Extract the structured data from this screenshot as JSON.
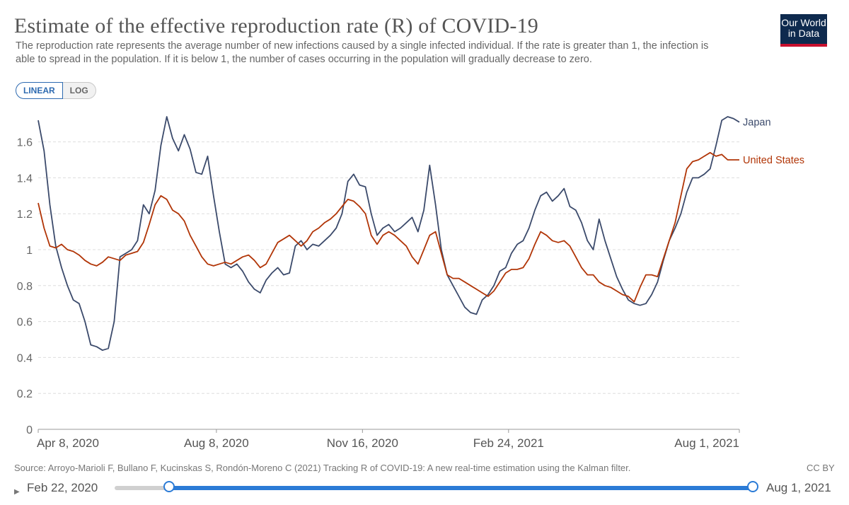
{
  "header": {
    "title": "Estimate of the effective reproduction rate (R) of COVID-19",
    "subtitle": "The reproduction rate represents the average number of new infections caused by a single infected individual. If the rate is greater than 1, the infection is able to spread in the population. If it is below 1, the number of cases occurring in the population will gradually decrease to zero.",
    "logo_line1": "Our World",
    "logo_line2": "in Data"
  },
  "controls": {
    "linear_label": "LINEAR",
    "log_label": "LOG",
    "active": "linear"
  },
  "footer": {
    "source": "Source: Arroyo-Marioli F, Bullano F, Kucinskas S, Rondón-Moreno C (2021) Tracking R of COVID-19: A new real-time estimation using the Kalman filter.",
    "license": "CC BY"
  },
  "timeline": {
    "start_label": "Feb 22, 2020",
    "end_label": "Aug 1, 2021"
  },
  "colors": {
    "japan": "#3b4a6b",
    "united_states": "#b13507",
    "grid": "#dddddd",
    "accent": "#2b7bd6"
  },
  "chart_data": {
    "type": "line",
    "title": "Estimate of the effective reproduction rate (R) of COVID-19",
    "xlabel": "",
    "ylabel": "",
    "x_range": [
      "2020-04-08",
      "2021-08-01"
    ],
    "ylim": [
      0,
      1.8
    ],
    "y_ticks": [
      0,
      0.2,
      0.4,
      0.6,
      0.8,
      1,
      1.2,
      1.4,
      1.6
    ],
    "y_tick_labels": [
      "0",
      "0.2",
      "0.4",
      "0.6",
      "0.8",
      "1",
      "1.2",
      "1.4",
      "1.6"
    ],
    "x_ticks": [
      "2020-04-08",
      "2020-08-08",
      "2020-11-16",
      "2021-02-24",
      "2021-08-01"
    ],
    "x_tick_labels": [
      "Apr 8, 2020",
      "Aug 8, 2020",
      "Nov 16, 2020",
      "Feb 24, 2021",
      "Aug 1, 2021"
    ],
    "grid": true,
    "legend": "line-end labels",
    "series": [
      {
        "name": "Japan",
        "color": "#3b4a6b",
        "points": [
          [
            "2020-04-08",
            1.72
          ],
          [
            "2020-04-12",
            1.55
          ],
          [
            "2020-04-16",
            1.25
          ],
          [
            "2020-04-20",
            1.02
          ],
          [
            "2020-04-24",
            0.9
          ],
          [
            "2020-04-28",
            0.8
          ],
          [
            "2020-05-02",
            0.72
          ],
          [
            "2020-05-06",
            0.7
          ],
          [
            "2020-05-10",
            0.6
          ],
          [
            "2020-05-14",
            0.47
          ],
          [
            "2020-05-18",
            0.46
          ],
          [
            "2020-05-22",
            0.44
          ],
          [
            "2020-05-26",
            0.45
          ],
          [
            "2020-05-30",
            0.6
          ],
          [
            "2020-06-03",
            0.96
          ],
          [
            "2020-06-07",
            0.98
          ],
          [
            "2020-06-11",
            1.0
          ],
          [
            "2020-06-15",
            1.05
          ],
          [
            "2020-06-19",
            1.25
          ],
          [
            "2020-06-23",
            1.2
          ],
          [
            "2020-06-27",
            1.33
          ],
          [
            "2020-07-01",
            1.58
          ],
          [
            "2020-07-05",
            1.74
          ],
          [
            "2020-07-09",
            1.62
          ],
          [
            "2020-07-13",
            1.55
          ],
          [
            "2020-07-17",
            1.64
          ],
          [
            "2020-07-21",
            1.56
          ],
          [
            "2020-07-25",
            1.43
          ],
          [
            "2020-07-29",
            1.42
          ],
          [
            "2020-08-02",
            1.52
          ],
          [
            "2020-08-06",
            1.3
          ],
          [
            "2020-08-10",
            1.1
          ],
          [
            "2020-08-14",
            0.92
          ],
          [
            "2020-08-18",
            0.9
          ],
          [
            "2020-08-22",
            0.92
          ],
          [
            "2020-08-26",
            0.88
          ],
          [
            "2020-08-30",
            0.82
          ],
          [
            "2020-09-03",
            0.78
          ],
          [
            "2020-09-07",
            0.76
          ],
          [
            "2020-09-11",
            0.83
          ],
          [
            "2020-09-15",
            0.87
          ],
          [
            "2020-09-19",
            0.9
          ],
          [
            "2020-09-23",
            0.86
          ],
          [
            "2020-09-27",
            0.87
          ],
          [
            "2020-10-01",
            1.02
          ],
          [
            "2020-10-05",
            1.05
          ],
          [
            "2020-10-09",
            1.0
          ],
          [
            "2020-10-13",
            1.03
          ],
          [
            "2020-10-17",
            1.02
          ],
          [
            "2020-10-21",
            1.05
          ],
          [
            "2020-10-25",
            1.08
          ],
          [
            "2020-10-29",
            1.12
          ],
          [
            "2020-11-02",
            1.2
          ],
          [
            "2020-11-06",
            1.38
          ],
          [
            "2020-11-10",
            1.42
          ],
          [
            "2020-11-14",
            1.36
          ],
          [
            "2020-11-18",
            1.35
          ],
          [
            "2020-11-22",
            1.2
          ],
          [
            "2020-11-26",
            1.08
          ],
          [
            "2020-11-30",
            1.12
          ],
          [
            "2020-12-04",
            1.14
          ],
          [
            "2020-12-08",
            1.1
          ],
          [
            "2020-12-12",
            1.12
          ],
          [
            "2020-12-16",
            1.15
          ],
          [
            "2020-12-20",
            1.18
          ],
          [
            "2020-12-24",
            1.1
          ],
          [
            "2020-12-28",
            1.22
          ],
          [
            "2021-01-01",
            1.47
          ],
          [
            "2021-01-05",
            1.25
          ],
          [
            "2021-01-09",
            1.0
          ],
          [
            "2021-01-13",
            0.86
          ],
          [
            "2021-01-17",
            0.8
          ],
          [
            "2021-01-21",
            0.74
          ],
          [
            "2021-01-25",
            0.68
          ],
          [
            "2021-01-29",
            0.65
          ],
          [
            "2021-02-02",
            0.64
          ],
          [
            "2021-02-06",
            0.72
          ],
          [
            "2021-02-10",
            0.75
          ],
          [
            "2021-02-14",
            0.8
          ],
          [
            "2021-02-18",
            0.88
          ],
          [
            "2021-02-22",
            0.9
          ],
          [
            "2021-02-26",
            0.98
          ],
          [
            "2021-03-02",
            1.03
          ],
          [
            "2021-03-06",
            1.05
          ],
          [
            "2021-03-10",
            1.12
          ],
          [
            "2021-03-14",
            1.22
          ],
          [
            "2021-03-18",
            1.3
          ],
          [
            "2021-03-22",
            1.32
          ],
          [
            "2021-03-26",
            1.27
          ],
          [
            "2021-03-30",
            1.3
          ],
          [
            "2021-04-03",
            1.34
          ],
          [
            "2021-04-07",
            1.24
          ],
          [
            "2021-04-11",
            1.22
          ],
          [
            "2021-04-15",
            1.15
          ],
          [
            "2021-04-19",
            1.05
          ],
          [
            "2021-04-23",
            1.0
          ],
          [
            "2021-04-27",
            1.17
          ],
          [
            "2021-05-01",
            1.05
          ],
          [
            "2021-05-05",
            0.95
          ],
          [
            "2021-05-09",
            0.85
          ],
          [
            "2021-05-13",
            0.78
          ],
          [
            "2021-05-17",
            0.72
          ],
          [
            "2021-05-21",
            0.7
          ],
          [
            "2021-05-25",
            0.69
          ],
          [
            "2021-05-29",
            0.7
          ],
          [
            "2021-06-02",
            0.75
          ],
          [
            "2021-06-06",
            0.82
          ],
          [
            "2021-06-10",
            0.94
          ],
          [
            "2021-06-14",
            1.05
          ],
          [
            "2021-06-18",
            1.12
          ],
          [
            "2021-06-22",
            1.2
          ],
          [
            "2021-06-26",
            1.32
          ],
          [
            "2021-06-30",
            1.4
          ],
          [
            "2021-07-04",
            1.4
          ],
          [
            "2021-07-08",
            1.42
          ],
          [
            "2021-07-12",
            1.45
          ],
          [
            "2021-07-16",
            1.58
          ],
          [
            "2021-07-20",
            1.72
          ],
          [
            "2021-07-24",
            1.74
          ],
          [
            "2021-07-28",
            1.73
          ],
          [
            "2021-08-01",
            1.71
          ]
        ]
      },
      {
        "name": "United States",
        "color": "#b13507",
        "points": [
          [
            "2020-04-08",
            1.26
          ],
          [
            "2020-04-12",
            1.12
          ],
          [
            "2020-04-16",
            1.02
          ],
          [
            "2020-04-20",
            1.01
          ],
          [
            "2020-04-24",
            1.03
          ],
          [
            "2020-04-28",
            1.0
          ],
          [
            "2020-05-02",
            0.99
          ],
          [
            "2020-05-06",
            0.97
          ],
          [
            "2020-05-10",
            0.94
          ],
          [
            "2020-05-14",
            0.92
          ],
          [
            "2020-05-18",
            0.91
          ],
          [
            "2020-05-22",
            0.93
          ],
          [
            "2020-05-26",
            0.96
          ],
          [
            "2020-05-30",
            0.95
          ],
          [
            "2020-06-03",
            0.94
          ],
          [
            "2020-06-07",
            0.97
          ],
          [
            "2020-06-11",
            0.98
          ],
          [
            "2020-06-15",
            0.99
          ],
          [
            "2020-06-19",
            1.04
          ],
          [
            "2020-06-23",
            1.14
          ],
          [
            "2020-06-27",
            1.25
          ],
          [
            "2020-07-01",
            1.3
          ],
          [
            "2020-07-05",
            1.28
          ],
          [
            "2020-07-09",
            1.22
          ],
          [
            "2020-07-13",
            1.2
          ],
          [
            "2020-07-17",
            1.16
          ],
          [
            "2020-07-21",
            1.08
          ],
          [
            "2020-07-25",
            1.02
          ],
          [
            "2020-07-29",
            0.96
          ],
          [
            "2020-08-02",
            0.92
          ],
          [
            "2020-08-06",
            0.91
          ],
          [
            "2020-08-10",
            0.92
          ],
          [
            "2020-08-14",
            0.93
          ],
          [
            "2020-08-18",
            0.92
          ],
          [
            "2020-08-22",
            0.94
          ],
          [
            "2020-08-26",
            0.96
          ],
          [
            "2020-08-30",
            0.97
          ],
          [
            "2020-09-03",
            0.94
          ],
          [
            "2020-09-07",
            0.9
          ],
          [
            "2020-09-11",
            0.92
          ],
          [
            "2020-09-15",
            0.98
          ],
          [
            "2020-09-19",
            1.04
          ],
          [
            "2020-09-23",
            1.06
          ],
          [
            "2020-09-27",
            1.08
          ],
          [
            "2020-10-01",
            1.05
          ],
          [
            "2020-10-05",
            1.02
          ],
          [
            "2020-10-09",
            1.05
          ],
          [
            "2020-10-13",
            1.1
          ],
          [
            "2020-10-17",
            1.12
          ],
          [
            "2020-10-21",
            1.15
          ],
          [
            "2020-10-25",
            1.17
          ],
          [
            "2020-10-29",
            1.2
          ],
          [
            "2020-11-02",
            1.24
          ],
          [
            "2020-11-06",
            1.28
          ],
          [
            "2020-11-10",
            1.27
          ],
          [
            "2020-11-14",
            1.24
          ],
          [
            "2020-11-18",
            1.2
          ],
          [
            "2020-11-22",
            1.08
          ],
          [
            "2020-11-26",
            1.03
          ],
          [
            "2020-11-30",
            1.08
          ],
          [
            "2020-12-04",
            1.1
          ],
          [
            "2020-12-08",
            1.08
          ],
          [
            "2020-12-12",
            1.05
          ],
          [
            "2020-12-16",
            1.02
          ],
          [
            "2020-12-20",
            0.96
          ],
          [
            "2020-12-24",
            0.92
          ],
          [
            "2020-12-28",
            1.0
          ],
          [
            "2021-01-01",
            1.08
          ],
          [
            "2021-01-05",
            1.1
          ],
          [
            "2021-01-09",
            0.98
          ],
          [
            "2021-01-13",
            0.86
          ],
          [
            "2021-01-17",
            0.84
          ],
          [
            "2021-01-21",
            0.84
          ],
          [
            "2021-01-25",
            0.82
          ],
          [
            "2021-01-29",
            0.8
          ],
          [
            "2021-02-02",
            0.78
          ],
          [
            "2021-02-06",
            0.76
          ],
          [
            "2021-02-10",
            0.74
          ],
          [
            "2021-02-14",
            0.77
          ],
          [
            "2021-02-18",
            0.82
          ],
          [
            "2021-02-22",
            0.87
          ],
          [
            "2021-02-26",
            0.89
          ],
          [
            "2021-03-02",
            0.89
          ],
          [
            "2021-03-06",
            0.9
          ],
          [
            "2021-03-10",
            0.95
          ],
          [
            "2021-03-14",
            1.03
          ],
          [
            "2021-03-18",
            1.1
          ],
          [
            "2021-03-22",
            1.08
          ],
          [
            "2021-03-26",
            1.05
          ],
          [
            "2021-03-30",
            1.04
          ],
          [
            "2021-04-03",
            1.05
          ],
          [
            "2021-04-07",
            1.02
          ],
          [
            "2021-04-11",
            0.96
          ],
          [
            "2021-04-15",
            0.9
          ],
          [
            "2021-04-19",
            0.86
          ],
          [
            "2021-04-23",
            0.86
          ],
          [
            "2021-04-27",
            0.82
          ],
          [
            "2021-05-01",
            0.8
          ],
          [
            "2021-05-05",
            0.79
          ],
          [
            "2021-05-09",
            0.77
          ],
          [
            "2021-05-13",
            0.75
          ],
          [
            "2021-05-17",
            0.74
          ],
          [
            "2021-05-21",
            0.71
          ],
          [
            "2021-05-25",
            0.79
          ],
          [
            "2021-05-29",
            0.86
          ],
          [
            "2021-06-02",
            0.86
          ],
          [
            "2021-06-06",
            0.85
          ],
          [
            "2021-06-10",
            0.95
          ],
          [
            "2021-06-14",
            1.05
          ],
          [
            "2021-06-18",
            1.15
          ],
          [
            "2021-06-22",
            1.3
          ],
          [
            "2021-06-26",
            1.45
          ],
          [
            "2021-06-30",
            1.49
          ],
          [
            "2021-07-04",
            1.5
          ],
          [
            "2021-07-08",
            1.52
          ],
          [
            "2021-07-12",
            1.54
          ],
          [
            "2021-07-16",
            1.52
          ],
          [
            "2021-07-20",
            1.53
          ],
          [
            "2021-07-24",
            1.5
          ],
          [
            "2021-07-28",
            1.5
          ],
          [
            "2021-08-01",
            1.5
          ]
        ]
      }
    ]
  }
}
